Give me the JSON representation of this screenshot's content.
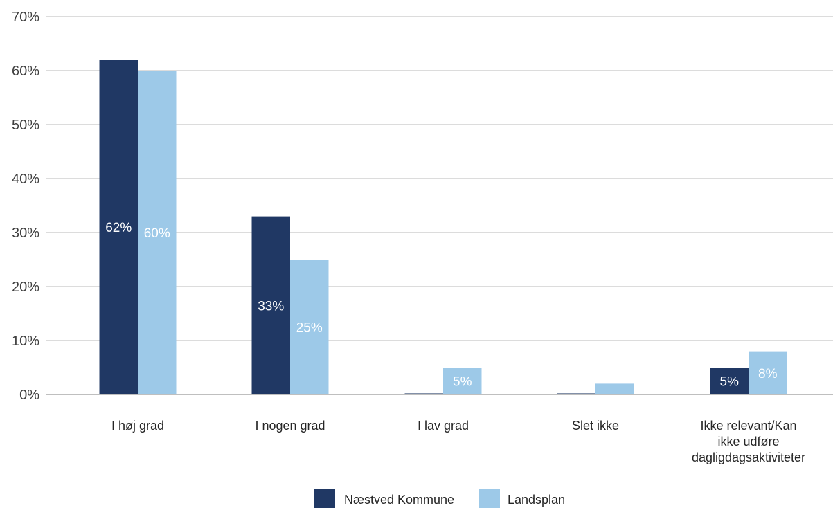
{
  "chart_data": {
    "type": "bar",
    "categories": [
      [
        "I høj grad"
      ],
      [
        "I nogen grad"
      ],
      [
        "I lav grad"
      ],
      [
        "Slet ikke"
      ],
      [
        "Ikke relevant/Kan",
        "ikke udføre",
        "dagligdagsaktiviteter"
      ]
    ],
    "series": [
      {
        "name": "Næstved Kommune",
        "color": "#203864",
        "values": [
          62,
          33,
          0.2,
          0.2,
          5
        ],
        "data_labels": [
          "62%",
          "33%",
          "",
          "",
          "5%"
        ]
      },
      {
        "name": "Landsplan",
        "color": "#9DC9E8",
        "values": [
          60,
          25,
          5,
          2,
          8
        ],
        "data_labels": [
          "60%",
          "25%",
          "5%",
          "",
          "8%"
        ]
      }
    ],
    "ylim": [
      0,
      70
    ],
    "yticks": [
      0,
      10,
      20,
      30,
      40,
      50,
      60,
      70
    ],
    "ytick_labels": [
      "0%",
      "10%",
      "20%",
      "30%",
      "40%",
      "50%",
      "60%",
      "70%"
    ],
    "grid": true,
    "legend_position": "bottom"
  }
}
